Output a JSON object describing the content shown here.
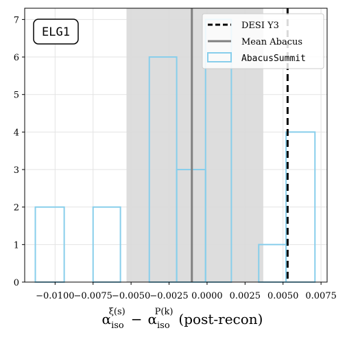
{
  "chart_data": {
    "type": "bar",
    "panel_label": "ELG1",
    "xlabel": {
      "alpha1": "α",
      "sub1": "iso",
      "sup1": "ξ(s)",
      "minus": "−",
      "alpha2": "α",
      "sub2": "iso",
      "sup2": "P(k)",
      "suffix": "(post-recon)"
    },
    "xlim": [
      -0.012,
      0.0079
    ],
    "ylim": [
      0,
      7.3
    ],
    "x_ticks": [
      -0.01,
      -0.0075,
      -0.005,
      -0.0025,
      0.0,
      0.0025,
      0.005,
      0.0075
    ],
    "x_tick_labels": [
      "−0.0100",
      "−0.0075",
      "−0.0050",
      "−0.0025",
      "0.0000",
      "0.0025",
      "0.0050",
      "0.0075"
    ],
    "y_ticks": [
      0,
      1,
      2,
      3,
      4,
      5,
      6,
      7
    ],
    "y_tick_labels": [
      "0",
      "1",
      "2",
      "3",
      "4",
      "5",
      "6",
      "7"
    ],
    "grid": true,
    "histogram": {
      "name": "AbacusSummit",
      "color": "#87ceeb",
      "bin_edges": [
        -0.0113,
        -0.0094,
        -0.0075,
        -0.0057,
        -0.0038,
        -0.002,
        -0.0001,
        0.0016,
        0.0034,
        0.0052,
        0.0071
      ],
      "counts": [
        2,
        0,
        2,
        0,
        6,
        3,
        7,
        0,
        1,
        4
      ]
    },
    "desi_y3": {
      "name": "DESI Y3",
      "x": 0.0053,
      "color": "#000000"
    },
    "mean_abacus": {
      "name": "Mean Abacus",
      "x": -0.001,
      "color": "#808080"
    },
    "shaded_band": {
      "x0": -0.0053,
      "x1": 0.0037,
      "color": "#d9d9d9"
    },
    "legend": {
      "placement": "top-right",
      "entries": [
        {
          "label": "DESI Y3",
          "style": "dashed",
          "color": "#000000"
        },
        {
          "label": "Mean Abacus",
          "style": "solid",
          "color": "#808080"
        },
        {
          "label": "AbacusSummit",
          "style": "patch",
          "color": "#87ceeb"
        }
      ]
    }
  }
}
